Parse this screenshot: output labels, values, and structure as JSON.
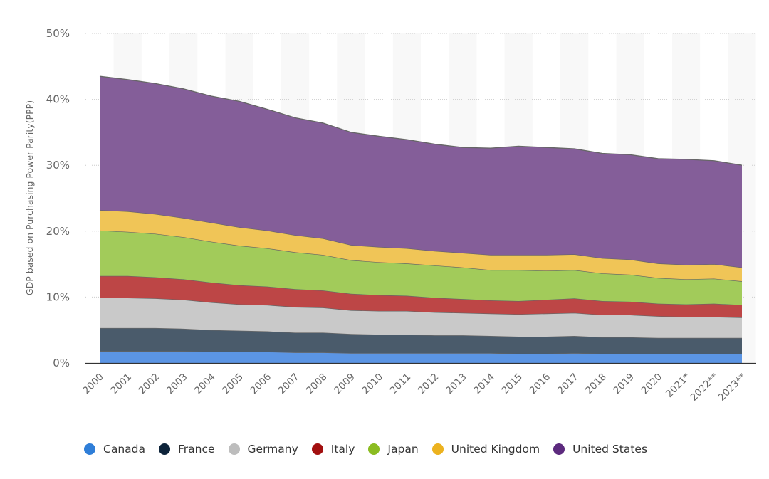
{
  "chart_data": {
    "type": "area",
    "stacked": true,
    "title": "",
    "xlabel": "",
    "ylabel": "GDP based on Purchasing Power Parity(PPP)",
    "ylim": [
      0,
      50
    ],
    "yticks": [
      "0%",
      "10%",
      "20%",
      "30%",
      "40%",
      "50%"
    ],
    "grid": true,
    "legend_position": "bottom",
    "categories": [
      "2000",
      "2001",
      "2002",
      "2003",
      "2004",
      "2005",
      "2006",
      "2007",
      "2008",
      "2009",
      "2010",
      "2011",
      "2012",
      "2013",
      "2014",
      "2015",
      "2016",
      "2017",
      "2018",
      "2019",
      "2020",
      "2021*",
      "2022**",
      "2023**"
    ],
    "series": [
      {
        "name": "Canada",
        "color": "#5b95e4",
        "values": [
          1.8,
          1.8,
          1.8,
          1.8,
          1.7,
          1.7,
          1.7,
          1.6,
          1.6,
          1.5,
          1.5,
          1.5,
          1.5,
          1.5,
          1.5,
          1.4,
          1.4,
          1.5,
          1.4,
          1.4,
          1.4,
          1.4,
          1.4,
          1.4
        ]
      },
      {
        "name": "France",
        "color": "#4a5b6b",
        "values": [
          3.5,
          3.5,
          3.5,
          3.4,
          3.3,
          3.2,
          3.1,
          3.0,
          3.0,
          2.9,
          2.8,
          2.8,
          2.7,
          2.7,
          2.6,
          2.6,
          2.6,
          2.6,
          2.5,
          2.5,
          2.4,
          2.4,
          2.4,
          2.4
        ]
      },
      {
        "name": "Germany",
        "color": "#c9c9c9",
        "values": [
          4.6,
          4.6,
          4.5,
          4.4,
          4.2,
          4.0,
          4.0,
          3.9,
          3.8,
          3.6,
          3.6,
          3.6,
          3.5,
          3.4,
          3.4,
          3.4,
          3.5,
          3.5,
          3.4,
          3.4,
          3.3,
          3.2,
          3.2,
          3.1
        ]
      },
      {
        "name": "Italy",
        "color": "#bd4646",
        "values": [
          3.3,
          3.3,
          3.2,
          3.1,
          3.0,
          2.9,
          2.8,
          2.7,
          2.6,
          2.5,
          2.4,
          2.3,
          2.2,
          2.1,
          2.0,
          2.0,
          2.1,
          2.2,
          2.1,
          2.0,
          1.9,
          1.9,
          2.0,
          1.9
        ]
      },
      {
        "name": "Japan",
        "color": "#a2cb5a",
        "values": [
          6.9,
          6.7,
          6.6,
          6.4,
          6.2,
          6.0,
          5.8,
          5.6,
          5.4,
          5.1,
          5.0,
          4.9,
          4.9,
          4.8,
          4.6,
          4.7,
          4.4,
          4.3,
          4.2,
          4.1,
          3.9,
          3.8,
          3.8,
          3.6
        ]
      },
      {
        "name": "United Kingdom",
        "color": "#f0c557",
        "values": [
          3.1,
          3.1,
          3.0,
          2.9,
          2.9,
          2.8,
          2.7,
          2.6,
          2.5,
          2.3,
          2.3,
          2.3,
          2.2,
          2.2,
          2.3,
          2.3,
          2.4,
          2.4,
          2.3,
          2.3,
          2.2,
          2.2,
          2.2,
          2.1
        ]
      },
      {
        "name": "United States",
        "color": "#845e99",
        "values": [
          20.3,
          20.0,
          19.8,
          19.6,
          19.2,
          19.1,
          18.4,
          17.8,
          17.5,
          17.1,
          16.8,
          16.5,
          16.2,
          16.0,
          16.2,
          16.5,
          16.3,
          16.0,
          15.9,
          15.9,
          15.9,
          16.0,
          15.7,
          15.5
        ]
      }
    ]
  },
  "legend": [
    {
      "label": "Canada",
      "color": "#2f7ed8"
    },
    {
      "label": "France",
      "color": "#0d233a"
    },
    {
      "label": "Germany",
      "color": "#bdbdbd"
    },
    {
      "label": "Italy",
      "color": "#a20f0f"
    },
    {
      "label": "Japan",
      "color": "#8bbc21"
    },
    {
      "label": "United Kingdom",
      "color": "#ecb21f"
    },
    {
      "label": "United States",
      "color": "#5c2a7e"
    }
  ]
}
